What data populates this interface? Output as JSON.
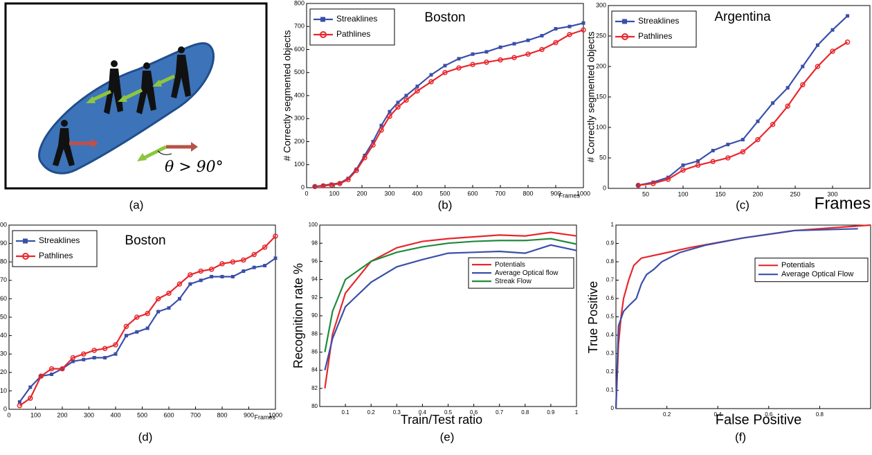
{
  "diagram": {
    "annotation": "θ > 90°",
    "caption": "(a)"
  },
  "chart_data": [
    {
      "type": "line",
      "title": "Boston",
      "caption": "(b)",
      "ylabel": "# Correctly segmented objects",
      "xlabel": "Frames",
      "legend": "upper left",
      "x": [
        30,
        60,
        90,
        120,
        150,
        180,
        210,
        240,
        270,
        300,
        330,
        360,
        400,
        450,
        500,
        550,
        600,
        650,
        700,
        750,
        800,
        850,
        900,
        950,
        1000
      ],
      "series": [
        {
          "name": "Streaklines",
          "color": "#3a4fa8",
          "marker": "square",
          "values": [
            5,
            10,
            15,
            20,
            40,
            80,
            140,
            200,
            270,
            330,
            370,
            400,
            440,
            490,
            530,
            560,
            580,
            590,
            610,
            625,
            640,
            660,
            690,
            700,
            715
          ]
        },
        {
          "name": "Pathlines",
          "color": "#e8262c",
          "marker": "circle",
          "values": [
            5,
            8,
            12,
            18,
            35,
            75,
            130,
            185,
            250,
            310,
            350,
            380,
            420,
            460,
            500,
            520,
            535,
            545,
            555,
            565,
            580,
            600,
            630,
            665,
            685
          ]
        }
      ],
      "xlim": [
        0,
        1000
      ],
      "xticks": [
        0,
        100,
        200,
        300,
        400,
        500,
        600,
        700,
        800,
        900,
        1000
      ],
      "ylim": [
        0,
        800
      ],
      "yticks": [
        0,
        100,
        200,
        300,
        400,
        500,
        600,
        700,
        800
      ]
    },
    {
      "type": "line",
      "title": "Argentina",
      "caption": "(c)",
      "ylabel": "# Correctly segmented objects",
      "xlabel": "Frames",
      "legend": "upper left",
      "x": [
        40,
        60,
        80,
        100,
        120,
        140,
        160,
        180,
        200,
        220,
        240,
        260,
        280,
        300,
        320
      ],
      "series": [
        {
          "name": "Streaklines",
          "color": "#3a4fa8",
          "marker": "square",
          "values": [
            5,
            10,
            18,
            38,
            45,
            62,
            72,
            80,
            110,
            140,
            165,
            200,
            235,
            260,
            283
          ]
        },
        {
          "name": "Pathlines",
          "color": "#e8262c",
          "marker": "circle",
          "values": [
            5,
            8,
            15,
            30,
            38,
            44,
            50,
            60,
            80,
            105,
            135,
            170,
            200,
            225,
            240
          ]
        }
      ],
      "xlim": [
        0,
        350
      ],
      "xticks": [
        50,
        100,
        150,
        200,
        250,
        300
      ],
      "ylim": [
        0,
        300
      ],
      "yticks": [
        0,
        50,
        100,
        150,
        200,
        250,
        300
      ]
    },
    {
      "type": "line",
      "title": "Boston",
      "caption": "(d)",
      "xlabel": "Frames",
      "legend": "upper left",
      "x": [
        40,
        80,
        120,
        160,
        200,
        240,
        280,
        320,
        360,
        400,
        440,
        480,
        520,
        560,
        600,
        640,
        680,
        720,
        760,
        800,
        840,
        880,
        920,
        960,
        1000
      ],
      "series": [
        {
          "name": "Streaklines",
          "color": "#3a4fa8",
          "marker": "square",
          "values": [
            4,
            12,
            18,
            19,
            22,
            26,
            27,
            28,
            28,
            30,
            40,
            42,
            44,
            53,
            55,
            60,
            68,
            70,
            72,
            72,
            72,
            75,
            77,
            78,
            82
          ]
        },
        {
          "name": "Pathlines",
          "color": "#e8262c",
          "marker": "circle",
          "values": [
            2,
            6,
            18,
            22,
            22,
            28,
            30,
            32,
            33,
            35,
            45,
            50,
            52,
            60,
            63,
            68,
            73,
            75,
            76,
            79,
            80,
            81,
            84,
            88,
            94
          ]
        }
      ],
      "xlim": [
        0,
        1000
      ],
      "xticks": [
        0,
        100,
        200,
        300,
        400,
        500,
        600,
        700,
        800,
        900,
        1000
      ],
      "ylim": [
        0,
        100
      ],
      "yticks": [
        0,
        10,
        20,
        30,
        40,
        50,
        60,
        70,
        80,
        90,
        100
      ]
    },
    {
      "type": "line",
      "caption": "(e)",
      "ylabel": "Recognition rate %",
      "xlabel": "Train/Test ratio",
      "legend": "center right",
      "x": [
        0.02,
        0.05,
        0.1,
        0.2,
        0.3,
        0.4,
        0.5,
        0.6,
        0.7,
        0.8,
        0.9,
        1
      ],
      "series": [
        {
          "name": "Potentials",
          "color": "#e8262c",
          "values": [
            82,
            88,
            92.5,
            96,
            97.5,
            98.2,
            98.5,
            98.7,
            98.9,
            98.8,
            99.2,
            98.8
          ]
        },
        {
          "name": "Average Optical flow",
          "color": "#3a4fa8",
          "values": [
            84,
            87.5,
            91,
            93.7,
            95.4,
            96.2,
            96.9,
            97,
            97.1,
            96.9,
            97.8,
            97.2
          ]
        },
        {
          "name": "Streak Flow",
          "color": "#1f8a3c",
          "values": [
            86,
            90.5,
            94,
            96,
            97,
            97.6,
            98,
            98.2,
            98.3,
            98.3,
            98.5,
            97.9
          ]
        }
      ],
      "xlim": [
        0,
        1
      ],
      "xticks": [
        0.1,
        0.2,
        0.3,
        0.4,
        0.5,
        0.6,
        0.7,
        0.8,
        0.9,
        1
      ],
      "ylim": [
        80,
        100
      ],
      "yticks": [
        80,
        82,
        84,
        86,
        88,
        90,
        92,
        94,
        96,
        98,
        100
      ]
    },
    {
      "type": "line",
      "caption": "(f)",
      "ylabel": "True Positive",
      "xlabel": "False Positive",
      "legend": "center right",
      "series": [
        {
          "name": "Potentials",
          "color": "#e8262c",
          "x": [
            0,
            0.01,
            0.02,
            0.03,
            0.05,
            0.07,
            0.1,
            0.2,
            0.3,
            0.5,
            0.7,
            0.9,
            1
          ],
          "values": [
            0,
            0.35,
            0.5,
            0.6,
            0.7,
            0.78,
            0.82,
            0.85,
            0.88,
            0.93,
            0.97,
            0.99,
            1
          ]
        },
        {
          "name": "Average Optical Flow",
          "color": "#3a4fa8",
          "x": [
            0,
            0.01,
            0.03,
            0.05,
            0.08,
            0.1,
            0.12,
            0.15,
            0.18,
            0.25,
            0.35,
            0.5,
            0.7,
            0.95
          ],
          "values": [
            0,
            0.45,
            0.53,
            0.56,
            0.6,
            0.68,
            0.73,
            0.76,
            0.8,
            0.85,
            0.89,
            0.93,
            0.97,
            0.98
          ]
        }
      ],
      "xlim": [
        0,
        1
      ],
      "xticks": [
        0.2,
        0.4,
        0.6,
        0.8
      ],
      "ylim": [
        0,
        1
      ],
      "yticks": [
        0,
        0.1,
        0.2,
        0.3,
        0.4,
        0.5,
        0.6,
        0.7,
        0.8,
        0.9,
        1
      ]
    }
  ]
}
